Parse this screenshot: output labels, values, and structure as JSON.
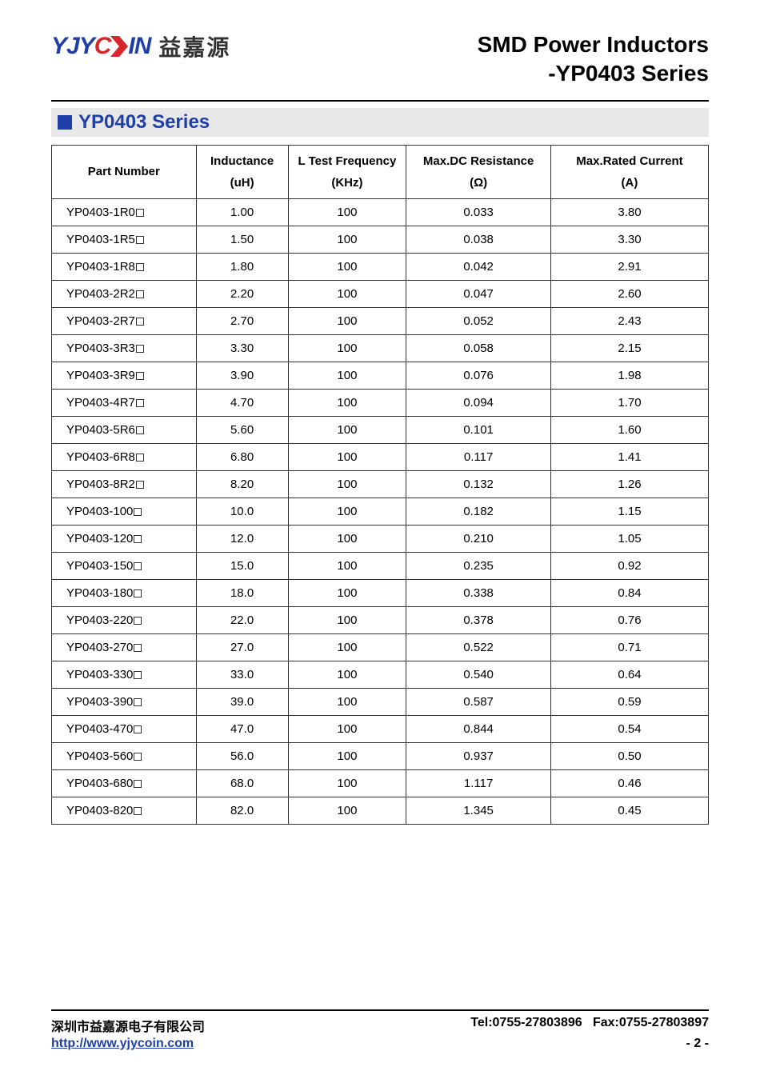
{
  "header": {
    "logo_en": "YJYCOIN",
    "logo_cn": "益嘉源",
    "title_line1": "SMD Power Inductors",
    "title_line2": "-YP0403 Series"
  },
  "section": {
    "title": "YP0403 Series"
  },
  "table": {
    "columns": [
      {
        "line1": "Part Number",
        "line2": ""
      },
      {
        "line1": "Inductance",
        "line2": "(uH)"
      },
      {
        "line1": "L Test Frequency",
        "line2": "(KHz)"
      },
      {
        "line1": "Max.DC Resistance",
        "line2": "(Ω)"
      },
      {
        "line1": "Max.Rated Current",
        "line2": "(A)"
      }
    ],
    "col_widths": [
      "22%",
      "14%",
      "18%",
      "22%",
      "24%"
    ],
    "rows": [
      [
        "YP0403-1R0",
        "1.00",
        "100",
        "0.033",
        "3.80"
      ],
      [
        "YP0403-1R5",
        "1.50",
        "100",
        "0.038",
        "3.30"
      ],
      [
        "YP0403-1R8",
        "1.80",
        "100",
        "0.042",
        "2.91"
      ],
      [
        "YP0403-2R2",
        "2.20",
        "100",
        "0.047",
        "2.60"
      ],
      [
        "YP0403-2R7",
        "2.70",
        "100",
        "0.052",
        "2.43"
      ],
      [
        "YP0403-3R3",
        "3.30",
        "100",
        "0.058",
        "2.15"
      ],
      [
        "YP0403-3R9",
        "3.90",
        "100",
        "0.076",
        "1.98"
      ],
      [
        "YP0403-4R7",
        "4.70",
        "100",
        "0.094",
        "1.70"
      ],
      [
        "YP0403-5R6",
        "5.60",
        "100",
        "0.101",
        "1.60"
      ],
      [
        "YP0403-6R8",
        "6.80",
        "100",
        "0.117",
        "1.41"
      ],
      [
        "YP0403-8R2",
        "8.20",
        "100",
        "0.132",
        "1.26"
      ],
      [
        "YP0403-100",
        "10.0",
        "100",
        "0.182",
        "1.15"
      ],
      [
        "YP0403-120",
        "12.0",
        "100",
        "0.210",
        "1.05"
      ],
      [
        "YP0403-150",
        "15.0",
        "100",
        "0.235",
        "0.92"
      ],
      [
        "YP0403-180",
        "18.0",
        "100",
        "0.338",
        "0.84"
      ],
      [
        "YP0403-220",
        "22.0",
        "100",
        "0.378",
        "0.76"
      ],
      [
        "YP0403-270",
        "27.0",
        "100",
        "0.522",
        "0.71"
      ],
      [
        "YP0403-330",
        "33.0",
        "100",
        "0.540",
        "0.64"
      ],
      [
        "YP0403-390",
        "39.0",
        "100",
        "0.587",
        "0.59"
      ],
      [
        "YP0403-470",
        "47.0",
        "100",
        "0.844",
        "0.54"
      ],
      [
        "YP0403-560",
        "56.0",
        "100",
        "0.937",
        "0.50"
      ],
      [
        "YP0403-680",
        "68.0",
        "100",
        "1.117",
        "0.46"
      ],
      [
        "YP0403-820",
        "82.0",
        "100",
        "1.345",
        "0.45"
      ]
    ]
  },
  "footer": {
    "company_cn": "深圳市益嘉源电子有限公司",
    "tel": "Tel:0755-27803896",
    "fax": "Fax:0755-27803897",
    "url": "http://www.yjycoin.com",
    "page": "- 2 -"
  },
  "colors": {
    "brand_blue": "#1f3ea8",
    "brand_red": "#d7262c",
    "section_bg": "#e8e8e8",
    "border": "#333333",
    "text": "#000000"
  }
}
